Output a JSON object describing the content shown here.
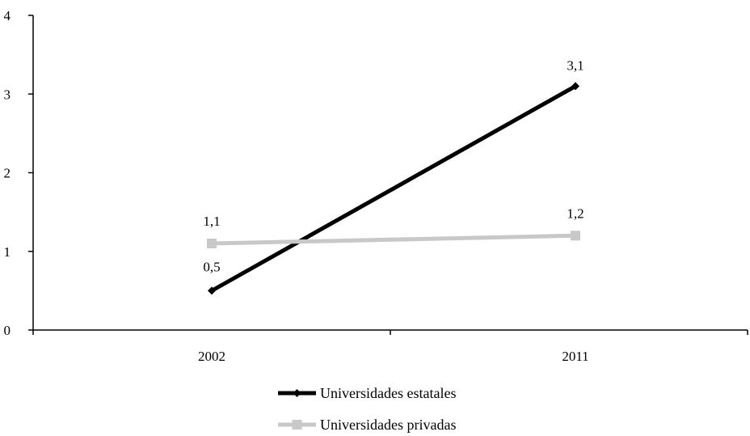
{
  "chart_data": {
    "type": "line",
    "title": "",
    "xlabel": "",
    "ylabel": "",
    "categories": [
      "2002",
      "2011"
    ],
    "y_ticks": [
      "0",
      "1",
      "2",
      "3",
      "4"
    ],
    "ylim": [
      0,
      4
    ],
    "grid": false,
    "legend_position": "bottom",
    "series": [
      {
        "name": "Universidades estatales",
        "values": [
          0.5,
          3.1
        ],
        "labels": [
          "0,5",
          "3,1"
        ],
        "color": "#000000",
        "marker": "diamond"
      },
      {
        "name": "Universidades privadas",
        "values": [
          1.1,
          1.2
        ],
        "labels": [
          "1,1",
          "1,2"
        ],
        "color": "#c8c8c8",
        "marker": "square"
      }
    ]
  }
}
